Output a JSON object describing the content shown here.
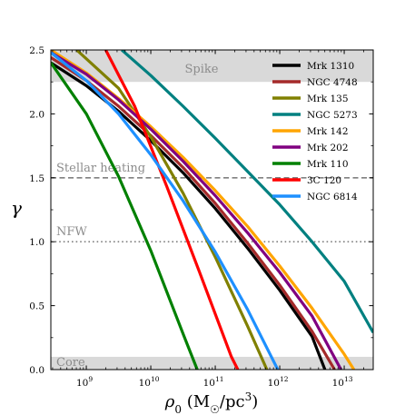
{
  "chart_data": {
    "type": "line",
    "xlabel": "ρ₀ (M☉/pc³)",
    "ylabel": "γ",
    "xscale": "log",
    "xlim_log10": [
      8.45,
      13.45
    ],
    "ylim": [
      0,
      2.5
    ],
    "x_ticks": [
      {
        "exp": 9,
        "label": "10",
        "sup": "9"
      },
      {
        "exp": 10,
        "label": "10",
        "sup": "10"
      },
      {
        "exp": 11,
        "label": "10",
        "sup": "11"
      },
      {
        "exp": 12,
        "label": "10",
        "sup": "12"
      },
      {
        "exp": 13,
        "label": "10",
        "sup": "13"
      }
    ],
    "y_ticks": [
      "0.0",
      "0.5",
      "1.0",
      "1.5",
      "2.0",
      "2.5"
    ],
    "bands": [
      {
        "label": "Spike",
        "y0": 2.25,
        "y1": 2.5,
        "color": "#d9d9d9"
      },
      {
        "label": "Core",
        "y0": 0,
        "y1": 0.1,
        "color": "#d9d9d9"
      }
    ],
    "reference_lines": [
      {
        "label": "Stellar heating",
        "y": 1.5,
        "style": "dashed",
        "color": "#808080"
      },
      {
        "label": "NFW",
        "y": 1.0,
        "style": "dotted",
        "color": "#808080"
      }
    ],
    "legend_position": "top-right",
    "series": [
      {
        "name": "Mrk 1310",
        "color": "#000000",
        "points": [
          [
            8.45,
            2.4
          ],
          [
            9,
            2.22
          ],
          [
            9.5,
            2.02
          ],
          [
            10,
            1.79
          ],
          [
            10.5,
            1.54
          ],
          [
            11,
            1.26
          ],
          [
            11.5,
            0.95
          ],
          [
            12,
            0.62
          ],
          [
            12.5,
            0.26
          ],
          [
            12.7,
            0
          ]
        ]
      },
      {
        "name": "NGC 4748",
        "color": "#a52a2a",
        "points": [
          [
            8.45,
            2.44
          ],
          [
            9,
            2.26
          ],
          [
            9.5,
            2.06
          ],
          [
            10,
            1.83
          ],
          [
            10.5,
            1.58
          ],
          [
            11,
            1.3
          ],
          [
            11.5,
            0.99
          ],
          [
            12,
            0.66
          ],
          [
            12.5,
            0.3
          ],
          [
            12.85,
            0
          ]
        ]
      },
      {
        "name": "Mrk 135",
        "color": "#808000",
        "points": [
          [
            8.85,
            2.5
          ],
          [
            9.5,
            2.2
          ],
          [
            10,
            1.82
          ],
          [
            10.5,
            1.38
          ],
          [
            11,
            0.88
          ],
          [
            11.5,
            0.34
          ],
          [
            11.8,
            0
          ]
        ]
      },
      {
        "name": "NGC 5273",
        "color": "#008080",
        "points": [
          [
            9.55,
            2.5
          ],
          [
            10,
            2.3
          ],
          [
            10.5,
            2.06
          ],
          [
            11,
            1.81
          ],
          [
            11.5,
            1.55
          ],
          [
            12,
            1.29
          ],
          [
            12.5,
            1.0
          ],
          [
            13,
            0.69
          ],
          [
            13.45,
            0.29
          ]
        ]
      },
      {
        "name": "Mrk 142",
        "color": "#ffa500",
        "points": [
          [
            8.45,
            2.5
          ],
          [
            9,
            2.32
          ],
          [
            9.5,
            2.12
          ],
          [
            10,
            1.9
          ],
          [
            10.5,
            1.66
          ],
          [
            11,
            1.4
          ],
          [
            11.5,
            1.12
          ],
          [
            12,
            0.81
          ],
          [
            12.5,
            0.48
          ],
          [
            13,
            0.12
          ],
          [
            13.15,
            0
          ]
        ]
      },
      {
        "name": "Mrk 202",
        "color": "#800080",
        "points": [
          [
            8.45,
            2.48
          ],
          [
            9,
            2.31
          ],
          [
            9.5,
            2.11
          ],
          [
            10,
            1.88
          ],
          [
            10.5,
            1.63
          ],
          [
            11,
            1.36
          ],
          [
            11.5,
            1.07
          ],
          [
            12,
            0.76
          ],
          [
            12.5,
            0.42
          ],
          [
            12.95,
            0
          ]
        ]
      },
      {
        "name": "Mrk 110",
        "color": "#008000",
        "points": [
          [
            8.45,
            2.4
          ],
          [
            9,
            2.0
          ],
          [
            9.5,
            1.51
          ],
          [
            10,
            0.93
          ],
          [
            10.5,
            0.28
          ],
          [
            10.72,
            0
          ]
        ]
      },
      {
        "name": "3C 120",
        "color": "#ff0000",
        "points": [
          [
            9.3,
            2.5
          ],
          [
            9.75,
            2.06
          ],
          [
            10.25,
            1.43
          ],
          [
            10.75,
            0.77
          ],
          [
            11.25,
            0.1
          ],
          [
            11.35,
            0
          ]
        ]
      },
      {
        "name": "NGC 6814",
        "color": "#1e90ff",
        "points": [
          [
            8.45,
            2.48
          ],
          [
            9,
            2.26
          ],
          [
            9.5,
            2.0
          ],
          [
            10,
            1.68
          ],
          [
            10.5,
            1.32
          ],
          [
            11,
            0.92
          ],
          [
            11.5,
            0.47
          ],
          [
            11.97,
            0
          ]
        ]
      }
    ]
  }
}
